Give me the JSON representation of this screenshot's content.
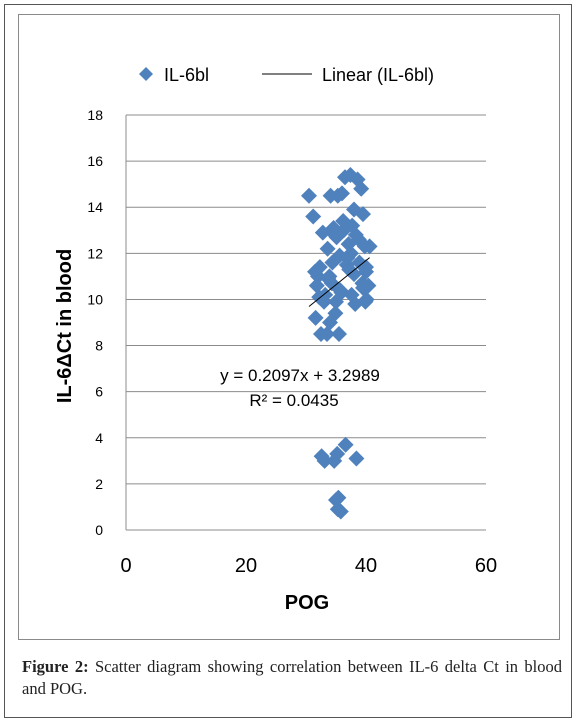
{
  "chart_data": {
    "type": "scatter",
    "title": "",
    "xlabel": "POG",
    "ylabel": "IL-6ΔCt in blood",
    "xlim": [
      0,
      60
    ],
    "ylim": [
      0,
      18
    ],
    "x_ticks": [
      "0",
      "20",
      "40",
      "60"
    ],
    "y_ticks": [
      "0",
      "2",
      "4",
      "6",
      "8",
      "10",
      "12",
      "14",
      "16",
      "18"
    ],
    "grid": "horizontal",
    "legend_position": "top",
    "colors": {
      "marker": "#4f81bd",
      "trendline": "#000000",
      "grid": "#8c8c8c"
    },
    "series": [
      {
        "name": "IL-6bl",
        "marker": "diamond",
        "x": [
          30.5,
          31.2,
          31.5,
          31.8,
          32.3,
          32.8,
          33.2,
          33.6,
          33.9,
          34.1,
          34.3,
          34.6,
          34.9,
          35.1,
          35.3,
          35.6,
          35.9,
          36.2,
          36.5,
          36.8,
          37.1,
          37.4,
          37.7,
          38.0,
          38.3,
          38.6,
          38.9,
          39.2,
          39.5,
          39.8,
          40.1,
          40.4,
          31.6,
          32.5,
          33.0,
          33.7,
          34.4,
          35.0,
          35.7,
          36.3,
          36.9,
          37.6,
          38.2,
          38.8,
          39.4,
          40.0,
          40.6,
          32.0,
          34.0,
          36.0,
          38.0,
          40.0,
          33.5,
          35.5,
          37.5,
          39.5,
          32.2,
          34.8,
          37.2,
          39.9,
          35.2,
          36.6,
          38.4,
          33.1,
          34.7,
          32.6,
          35.0,
          35.4,
          35.8,
          35.3
        ],
        "y": [
          14.5,
          13.6,
          11.2,
          10.6,
          11.4,
          12.9,
          10.2,
          12.2,
          11.0,
          14.5,
          10.7,
          13.1,
          9.4,
          12.7,
          14.5,
          11.9,
          10.3,
          13.4,
          15.3,
          11.5,
          12.4,
          15.4,
          13.2,
          11.1,
          12.8,
          15.2,
          11.6,
          14.8,
          10.5,
          12.3,
          10.0,
          10.6,
          9.2,
          8.5,
          9.9,
          10.9,
          11.6,
          9.9,
          10.4,
          13.0,
          11.8,
          10.2,
          9.8,
          12.6,
          10.7,
          11.4,
          12.3,
          11.0,
          9.0,
          14.6,
          13.9,
          11.2,
          8.5,
          8.5,
          12.0,
          13.7,
          10.1,
          12.8,
          11.3,
          9.9,
          3.3,
          3.7,
          3.1,
          3.0,
          3.0,
          3.2,
          1.3,
          1.4,
          0.8,
          0.9
        ]
      }
    ],
    "trendline": {
      "name": "Linear (IL-6bl)",
      "slope": 0.2097,
      "intercept": 3.2989,
      "x_range": [
        30.5,
        40.6
      ],
      "equation": "y = 0.2097x + 3.2989",
      "r2_label": "R² = 0.0435"
    }
  },
  "caption": {
    "label": "Figure 2:",
    "text": "Scatter diagram showing correlation between IL-6 delta Ct in blood and POG."
  }
}
